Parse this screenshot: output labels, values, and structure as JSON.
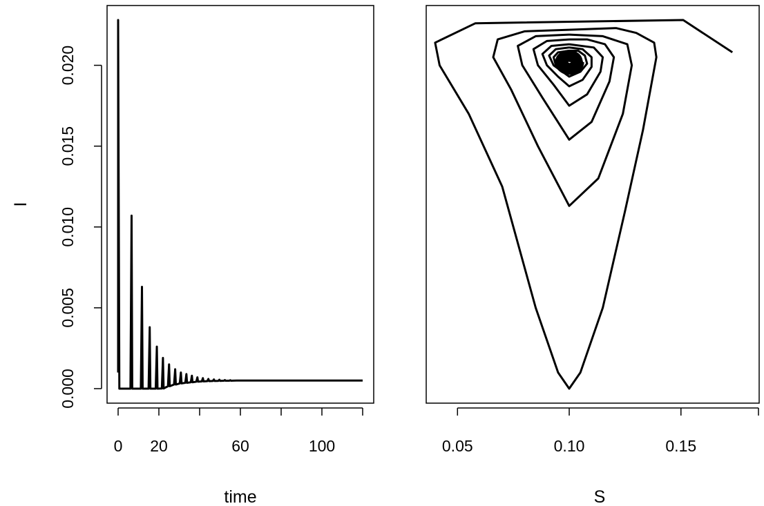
{
  "chart_data": [
    {
      "type": "line",
      "panel": "left",
      "xlabel": "time",
      "ylabel": "I",
      "xlim": [
        0,
        120
      ],
      "ylim": [
        0,
        0.0228
      ],
      "xticks": [
        0,
        20,
        40,
        60,
        80,
        100,
        120
      ],
      "xtick_labels": [
        "0",
        "20",
        "",
        "60",
        "",
        "100",
        ""
      ],
      "yticks": [
        0,
        0.005,
        0.01,
        0.015,
        0.02
      ],
      "ytick_labels": [
        "0.000",
        "0.005",
        "0.010",
        "0.015",
        "0.020"
      ],
      "grid": false,
      "series": [
        {
          "peaks": [
            {
              "t": 0.0,
              "I": 0.0228
            },
            {
              "t": 6.6,
              "I": 0.0107
            },
            {
              "t": 11.7,
              "I": 0.0063
            },
            {
              "t": 15.5,
              "I": 0.0038
            },
            {
              "t": 19.0,
              "I": 0.0026
            },
            {
              "t": 22.0,
              "I": 0.0019
            },
            {
              "t": 25.0,
              "I": 0.0015
            },
            {
              "t": 28.0,
              "I": 0.0012
            },
            {
              "t": 30.8,
              "I": 0.001
            },
            {
              "t": 33.5,
              "I": 0.0009
            },
            {
              "t": 36.2,
              "I": 0.0008
            },
            {
              "t": 38.9,
              "I": 0.0007
            },
            {
              "t": 41.6,
              "I": 0.00065
            },
            {
              "t": 44.3,
              "I": 0.0006
            },
            {
              "t": 47.0,
              "I": 0.00057
            },
            {
              "t": 49.7,
              "I": 0.00055
            },
            {
              "t": 52.4,
              "I": 0.00053
            },
            {
              "t": 55.1,
              "I": 0.00052
            }
          ],
          "equilibrium_I": 0.0005,
          "t_end": 120
        }
      ]
    },
    {
      "type": "line",
      "panel": "right",
      "xlabel": "S",
      "ylabel": "",
      "xlim": [
        0.036,
        0.185
      ],
      "ylim": [
        0,
        0.0228
      ],
      "xticks": [
        0.05,
        0.1,
        0.15
      ],
      "xtick_labels": [
        "0.05",
        "0.10",
        "0.15"
      ],
      "grid": false,
      "series": [
        {
          "loops": [
            [
              [
                0.173,
                0.0208
              ],
              [
                0.151,
                0.0228
              ],
              [
                0.058,
                0.0226
              ],
              [
                0.04,
                0.0214
              ],
              [
                0.042,
                0.02
              ],
              [
                0.055,
                0.017
              ],
              [
                0.07,
                0.0125
              ],
              [
                0.085,
                0.005
              ],
              [
                0.095,
                0.001
              ],
              [
                0.1,
                0.0
              ],
              [
                0.105,
                0.001
              ],
              [
                0.115,
                0.005
              ],
              [
                0.125,
                0.011
              ],
              [
                0.133,
                0.016
              ],
              [
                0.139,
                0.0205
              ],
              [
                0.138,
                0.0214
              ],
              [
                0.13,
                0.022
              ],
              [
                0.121,
                0.0223
              ],
              [
                0.1,
                0.0222
              ]
            ],
            [
              [
                0.1,
                0.0222
              ],
              [
                0.08,
                0.0221
              ],
              [
                0.068,
                0.0216
              ],
              [
                0.066,
                0.0205
              ],
              [
                0.074,
                0.0185
              ],
              [
                0.086,
                0.015
              ],
              [
                0.1,
                0.0113
              ],
              [
                0.113,
                0.013
              ],
              [
                0.124,
                0.017
              ],
              [
                0.128,
                0.02
              ],
              [
                0.126,
                0.0213
              ],
              [
                0.115,
                0.0218
              ],
              [
                0.1,
                0.0219
              ]
            ],
            [
              [
                0.1,
                0.0219
              ],
              [
                0.085,
                0.0218
              ],
              [
                0.077,
                0.0212
              ],
              [
                0.079,
                0.02
              ],
              [
                0.088,
                0.018
              ],
              [
                0.1,
                0.0154
              ],
              [
                0.11,
                0.0165
              ],
              [
                0.118,
                0.019
              ],
              [
                0.12,
                0.0205
              ],
              [
                0.116,
                0.0213
              ],
              [
                0.108,
                0.0216
              ],
              [
                0.1,
                0.0216
              ]
            ],
            [
              [
                0.1,
                0.0216
              ],
              [
                0.09,
                0.0215
              ],
              [
                0.084,
                0.021
              ],
              [
                0.086,
                0.02
              ],
              [
                0.093,
                0.0188
              ],
              [
                0.1,
                0.0175
              ],
              [
                0.108,
                0.0182
              ],
              [
                0.114,
                0.0196
              ],
              [
                0.115,
                0.0205
              ],
              [
                0.111,
                0.0211
              ],
              [
                0.1,
                0.0213
              ]
            ],
            [
              [
                0.1,
                0.0213
              ],
              [
                0.092,
                0.0212
              ],
              [
                0.088,
                0.0207
              ],
              [
                0.09,
                0.02
              ],
              [
                0.095,
                0.0193
              ],
              [
                0.1,
                0.0187
              ],
              [
                0.106,
                0.0191
              ],
              [
                0.11,
                0.0199
              ],
              [
                0.11,
                0.0205
              ],
              [
                0.106,
                0.021
              ],
              [
                0.1,
                0.0211
              ]
            ],
            [
              [
                0.1,
                0.0211
              ],
              [
                0.094,
                0.021
              ],
              [
                0.091,
                0.0206
              ],
              [
                0.093,
                0.02
              ],
              [
                0.097,
                0.0196
              ],
              [
                0.1,
                0.0193
              ],
              [
                0.105,
                0.0196
              ],
              [
                0.108,
                0.0201
              ],
              [
                0.107,
                0.0206
              ],
              [
                0.104,
                0.0209
              ],
              [
                0.1,
                0.0209
              ]
            ],
            [
              [
                0.1,
                0.0209
              ],
              [
                0.095,
                0.0208
              ],
              [
                0.093,
                0.0205
              ],
              [
                0.094,
                0.02
              ],
              [
                0.098,
                0.0197
              ],
              [
                0.1,
                0.0196
              ],
              [
                0.104,
                0.0198
              ],
              [
                0.106,
                0.0201
              ],
              [
                0.105,
                0.0205
              ],
              [
                0.102,
                0.0207
              ],
              [
                0.1,
                0.0208
              ]
            ]
          ],
          "equilibrium": [
            0.1,
            0.0202
          ]
        }
      ]
    }
  ]
}
